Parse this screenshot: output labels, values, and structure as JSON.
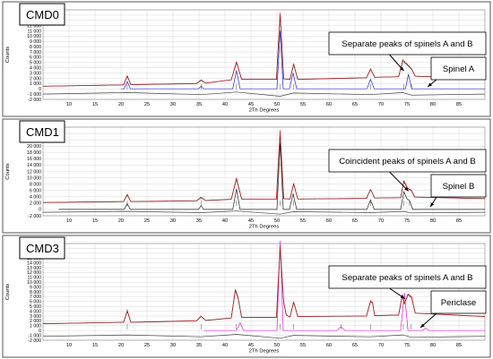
{
  "colors": {
    "panel_border": "#555555",
    "observed": "#d21e1e",
    "calculated": "#222222",
    "difference": "#444444",
    "spinel_a_phase": "#2323c8",
    "spinel_b_phase": "#222222",
    "periclase_phase": "#e020e0",
    "grid": "#d8d8d8",
    "label_box_border": "#000000"
  },
  "chart_data": [
    {
      "type": "line",
      "panel_label": "CMD0",
      "xlabel": "2Th Degrees",
      "ylabel": "Counts",
      "xlim": [
        5,
        90
      ],
      "ylim": [
        -2000,
        15000
      ],
      "x_ticks": [
        10,
        15,
        20,
        25,
        30,
        35,
        40,
        45,
        50,
        55,
        60,
        65,
        70,
        75,
        80,
        85
      ],
      "x_tick_labels": [
        "10",
        "15",
        "20",
        "25",
        "30",
        "35",
        "40",
        "45",
        "50",
        "55",
        "60",
        "65",
        "70",
        "75",
        "80",
        "85"
      ],
      "y_ticks": [
        15000,
        14000,
        13000,
        12000,
        11000,
        10000,
        9000,
        8000,
        7000,
        6000,
        5000,
        4000,
        3000,
        2000,
        1000,
        0,
        -1000,
        -2000
      ],
      "y_tick_labels": [
        "15 000",
        "14 000",
        "13 000",
        "12 000",
        "11 000",
        "10 000",
        "9 000",
        "8 000",
        "7 000",
        "6 000",
        "5 000",
        "4 000",
        "3 000",
        "2 000",
        "1 000",
        "0",
        "-1 000",
        "-2 000"
      ],
      "grid": true,
      "phase_line_label": "spinel_a_phase",
      "annotations": [
        {
          "text": "Separate peaks of spinels A and B",
          "arrow_to": [
            74.4,
            3400
          ]
        },
        {
          "text": "Spinel A",
          "arrow_to": [
            79,
            400
          ]
        }
      ],
      "series": [
        {
          "role": "observed",
          "x": [
            5,
            20.5,
            21.2,
            21.9,
            34.5,
            35.4,
            36.3,
            41.2,
            42.2,
            43.2,
            49.9,
            50.6,
            51.3,
            52.5,
            53.2,
            54,
            67.2,
            68,
            68.8,
            73.4,
            74.2,
            75.3,
            75.9,
            76.6,
            88,
            90
          ],
          "y": [
            500,
            750,
            2500,
            800,
            1000,
            1700,
            1100,
            1700,
            5200,
            1800,
            1800,
            14500,
            1900,
            1800,
            4800,
            1800,
            2100,
            3800,
            2200,
            2300,
            5500,
            4500,
            3800,
            2400,
            2000,
            1900
          ]
        },
        {
          "role": "calculated",
          "x": [
            5,
            20.5,
            21.2,
            21.9,
            34.5,
            35.4,
            36.3,
            41.2,
            42.2,
            43.2,
            49.9,
            50.6,
            51.3,
            52.5,
            53.2,
            54,
            67.2,
            68,
            68.8,
            73.4,
            74.2,
            75.3,
            75.9,
            76.6,
            88,
            90
          ],
          "y": [
            500,
            750,
            2400,
            800,
            1000,
            1600,
            1100,
            1700,
            5000,
            1800,
            1800,
            14000,
            1900,
            1800,
            4600,
            1800,
            2100,
            3700,
            2200,
            2300,
            5300,
            4300,
            3700,
            2400,
            2000,
            1900
          ]
        },
        {
          "role": "phase",
          "x": [
            20,
            20.6,
            21.2,
            21.8,
            34.9,
            35.4,
            35.9,
            41.5,
            42.2,
            42.9,
            50,
            50.6,
            51.2,
            52.4,
            53.1,
            53.8,
            67.3,
            68,
            68.7,
            74.7,
            75.3,
            75.9,
            90
          ],
          "y": [
            0,
            0,
            1400,
            0,
            0,
            500,
            0,
            0,
            3500,
            0,
            0,
            11000,
            0,
            0,
            3000,
            0,
            0,
            1800,
            0,
            0,
            2800,
            0,
            0
          ]
        },
        {
          "role": "difference",
          "x": [
            5,
            21.2,
            35.4,
            42.2,
            50.6,
            53.2,
            68,
            74.2,
            75.9,
            90
          ],
          "y": [
            -1000,
            -700,
            -1100,
            -600,
            -1400,
            -800,
            -1100,
            -700,
            -1200,
            -1000
          ]
        }
      ],
      "peak_markers": [
        21.2,
        35.4,
        42.2,
        50.6,
        53.2,
        68,
        74.4,
        75.9
      ]
    },
    {
      "type": "line",
      "panel_label": "CMD1",
      "xlabel": "2Th Degrees",
      "ylabel": "Counts",
      "xlim": [
        5,
        90
      ],
      "ylim": [
        -2000,
        26000
      ],
      "x_ticks": [
        10,
        15,
        20,
        25,
        30,
        35,
        40,
        45,
        50,
        55,
        60,
        65,
        70,
        75,
        80,
        85
      ],
      "x_tick_labels": [
        "10",
        "15",
        "20",
        "25",
        "30",
        "35",
        "40",
        "45",
        "50",
        "55",
        "60",
        "65",
        "70",
        "75",
        "80",
        "85"
      ],
      "y_ticks": [
        26000,
        24000,
        22000,
        20000,
        18000,
        16000,
        14000,
        12000,
        10000,
        8000,
        6000,
        4000,
        2000,
        0,
        -2000
      ],
      "y_tick_labels": [
        "26 000",
        "24 000",
        "22 000",
        "20 000",
        "18 000",
        "16 000",
        "14 000",
        "12 000",
        "10 000",
        "8 000",
        "6 000",
        "4 000",
        "2 000",
        "0",
        "-2 000"
      ],
      "grid": true,
      "phase_line_label": "spinel_b_phase",
      "annotations": [
        {
          "text": "Coincident peaks of spinels A and B",
          "arrow_to": [
            75.3,
            5800
          ]
        },
        {
          "text": "Spinel B",
          "arrow_to": [
            79.5,
            800
          ]
        }
      ],
      "series": [
        {
          "role": "observed",
          "x": [
            5,
            20.5,
            21.2,
            21.9,
            34.5,
            35.4,
            36.3,
            41.2,
            42.2,
            43.2,
            49.9,
            50.6,
            51.3,
            52.5,
            53.2,
            54,
            67.2,
            68,
            68.8,
            73.8,
            74.4,
            75.1,
            75.8,
            76.5,
            88,
            90
          ],
          "y": [
            2200,
            2500,
            4800,
            2500,
            2700,
            3900,
            2800,
            3200,
            10000,
            3300,
            3300,
            25000,
            3400,
            3300,
            8300,
            3300,
            3500,
            6400,
            3600,
            3700,
            9200,
            6800,
            6300,
            3900,
            3500,
            3400
          ]
        },
        {
          "role": "calculated",
          "x": [
            5,
            20.5,
            21.2,
            21.9,
            34.5,
            35.4,
            36.3,
            41.2,
            42.2,
            43.2,
            49.9,
            50.6,
            51.3,
            52.5,
            53.2,
            54,
            67.2,
            68,
            68.8,
            73.8,
            74.4,
            75.1,
            75.8,
            76.5,
            88,
            90
          ],
          "y": [
            2200,
            2500,
            4600,
            2500,
            2700,
            3700,
            2800,
            3200,
            9600,
            3300,
            3300,
            24000,
            3400,
            3300,
            8000,
            3300,
            3500,
            6200,
            3600,
            3700,
            8800,
            6600,
            6100,
            3900,
            3500,
            3400
          ]
        },
        {
          "role": "phase",
          "x": [
            8,
            20.6,
            21.2,
            21.8,
            34.9,
            35.4,
            35.9,
            41.5,
            42.2,
            42.9,
            50,
            50.6,
            51.2,
            52.4,
            53.1,
            53.8,
            67.3,
            68,
            68.7,
            73.8,
            74.4,
            75,
            75.5,
            76.1,
            90
          ],
          "y": [
            0,
            0,
            1800,
            0,
            0,
            1200,
            0,
            0,
            6500,
            0,
            0,
            21000,
            0,
            0,
            5000,
            0,
            0,
            3000,
            0,
            0,
            5600,
            3400,
            2800,
            0,
            0
          ]
        },
        {
          "role": "difference",
          "x": [
            5,
            21.2,
            35.4,
            42.2,
            50.6,
            53.2,
            68,
            74.4,
            75.8,
            90
          ],
          "y": [
            -900,
            -600,
            -1000,
            -500,
            -1500,
            -700,
            -1000,
            -600,
            -1100,
            -900
          ]
        }
      ],
      "peak_markers": [
        21.2,
        35.4,
        42.2,
        50.6,
        53.2,
        68,
        74.4,
        75.5
      ]
    },
    {
      "type": "line",
      "panel_label": "CMD3",
      "xlabel": "2Th Degrees",
      "ylabel": "Counts",
      "xlim": [
        5,
        90
      ],
      "ylim": [
        -2000,
        18000
      ],
      "x_ticks": [
        10,
        15,
        20,
        25,
        30,
        35,
        40,
        45,
        50,
        55,
        60,
        65,
        70,
        75,
        80,
        85
      ],
      "x_tick_labels": [
        "10",
        "15",
        "20",
        "25",
        "30",
        "35",
        "40",
        "45",
        "50",
        "55",
        "60",
        "65",
        "70",
        "75",
        "80",
        "85"
      ],
      "y_ticks": [
        18000,
        17000,
        16000,
        15000,
        14000,
        13000,
        12000,
        11000,
        10000,
        9000,
        8000,
        7000,
        6000,
        5000,
        4000,
        3000,
        2000,
        1000,
        0,
        -1000,
        -2000
      ],
      "y_tick_labels": [
        "18 000",
        "17 000",
        "16 000",
        "15 000",
        "14 000",
        "13 000",
        "12 000",
        "11 000",
        "10 000",
        "9 000",
        "8 000",
        "7 000",
        "6 000",
        "5 000",
        "4 000",
        "3 000",
        "2 000",
        "1 000",
        "0",
        "-1 000",
        "-2 000"
      ],
      "grid": true,
      "phase_line_label": "periclase_phase",
      "annotations": [
        {
          "text": "Separate peaks of spinels A and B",
          "arrow_to": [
            74.6,
            6600
          ]
        },
        {
          "text": "Periclase",
          "arrow_to": [
            77.6,
            600
          ]
        }
      ],
      "series": [
        {
          "role": "observed",
          "x": [
            5,
            20.5,
            21.2,
            21.9,
            34.5,
            35.4,
            36.3,
            41.2,
            42,
            42.5,
            43.2,
            49.9,
            50.6,
            51.3,
            51.8,
            52.5,
            53.2,
            54,
            67.2,
            68,
            68.4,
            68.8,
            73.4,
            74.1,
            74.5,
            75.2,
            75.9,
            76.6,
            88,
            90
          ],
          "y": [
            1400,
            1700,
            4200,
            1700,
            2000,
            3000,
            2100,
            2600,
            8600,
            7000,
            2700,
            2700,
            17500,
            6000,
            3200,
            2800,
            6000,
            2900,
            3000,
            6200,
            5800,
            3100,
            3200,
            7400,
            5600,
            7600,
            7000,
            3600,
            3000,
            2900
          ]
        },
        {
          "role": "calculated",
          "x": [
            5,
            20.5,
            21.2,
            21.9,
            34.5,
            35.4,
            36.3,
            41.2,
            42,
            42.5,
            43.2,
            49.9,
            50.6,
            51.3,
            51.8,
            52.5,
            53.2,
            54,
            67.2,
            68,
            68.4,
            68.8,
            73.4,
            74.1,
            74.5,
            75.2,
            75.9,
            76.6,
            88,
            90
          ],
          "y": [
            1400,
            1700,
            4000,
            1700,
            2000,
            2900,
            2100,
            2600,
            8300,
            6800,
            2700,
            2700,
            17000,
            5800,
            3200,
            2800,
            5800,
            2900,
            3000,
            6000,
            5600,
            3100,
            3200,
            7200,
            5500,
            7400,
            6800,
            3600,
            3000,
            2900
          ]
        },
        {
          "role": "phase",
          "x": [
            36,
            42.2,
            42.9,
            43.6,
            50,
            50.6,
            51.2,
            61.5,
            62.3,
            63.1,
            73.8,
            74.5,
            75.2,
            78,
            78.6,
            79.2,
            90
          ],
          "y": [
            0,
            0,
            1600,
            0,
            0,
            18500,
            0,
            0,
            800,
            0,
            0,
            7800,
            0,
            0,
            500,
            0,
            0
          ]
        },
        {
          "role": "difference",
          "x": [
            5,
            21.2,
            35.4,
            42.2,
            50.6,
            53.2,
            68,
            74.3,
            75.8,
            90
          ],
          "y": [
            -1200,
            -900,
            -1300,
            -800,
            -1600,
            -1000,
            -1300,
            -900,
            -1400,
            -1200
          ]
        }
      ],
      "peak_markers": [
        21.2,
        35.4,
        42.2,
        50.6,
        53.2,
        62.3,
        68,
        74.3,
        75.8
      ]
    }
  ]
}
